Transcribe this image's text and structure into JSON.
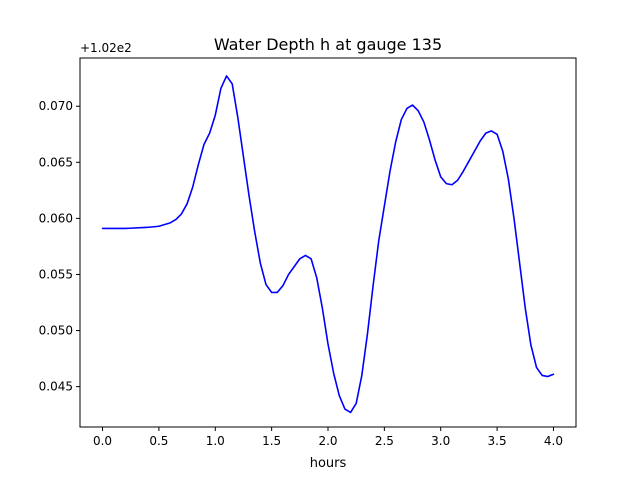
{
  "chart_data": {
    "type": "line",
    "title": "Water Depth h at gauge 135",
    "xlabel": "hours",
    "ylabel": "",
    "offset_text": "+1.02e2",
    "xlim": [
      -0.2,
      4.2
    ],
    "ylim": [
      0.0414,
      0.0743
    ],
    "x_ticks": [
      0.0,
      0.5,
      1.0,
      1.5,
      2.0,
      2.5,
      3.0,
      3.5,
      4.0
    ],
    "x_tick_labels": [
      "0.0",
      "0.5",
      "1.0",
      "1.5",
      "2.0",
      "2.5",
      "3.0",
      "3.5",
      "4.0"
    ],
    "y_ticks": [
      0.045,
      0.05,
      0.055,
      0.06,
      0.065,
      0.07
    ],
    "y_tick_labels": [
      "0.045",
      "0.050",
      "0.055",
      "0.060",
      "0.065",
      "0.070"
    ],
    "grid": false,
    "series": [
      {
        "color": "#0000ff",
        "x": [
          0.0,
          0.2,
          0.4,
          0.5,
          0.6,
          0.65,
          0.7,
          0.75,
          0.8,
          0.85,
          0.9,
          0.95,
          1.0,
          1.05,
          1.1,
          1.15,
          1.2,
          1.25,
          1.3,
          1.35,
          1.4,
          1.45,
          1.5,
          1.55,
          1.6,
          1.65,
          1.7,
          1.75,
          1.8,
          1.85,
          1.9,
          1.95,
          2.0,
          2.05,
          2.1,
          2.15,
          2.2,
          2.25,
          2.3,
          2.35,
          2.4,
          2.45,
          2.5,
          2.55,
          2.6,
          2.65,
          2.7,
          2.75,
          2.8,
          2.85,
          2.9,
          2.95,
          3.0,
          3.05,
          3.1,
          3.15,
          3.2,
          3.25,
          3.3,
          3.35,
          3.4,
          3.45,
          3.5,
          3.55,
          3.6,
          3.65,
          3.7,
          3.75,
          3.8,
          3.85,
          3.9,
          3.95,
          4.0
        ],
        "y": [
          0.0591,
          0.0591,
          0.0592,
          0.0593,
          0.0596,
          0.0599,
          0.0604,
          0.0613,
          0.0628,
          0.0648,
          0.0666,
          0.0676,
          0.0692,
          0.0716,
          0.0727,
          0.072,
          0.069,
          0.0655,
          0.062,
          0.0588,
          0.056,
          0.0541,
          0.0534,
          0.0534,
          0.054,
          0.055,
          0.0557,
          0.0564,
          0.0567,
          0.0564,
          0.0547,
          0.052,
          0.0488,
          0.0462,
          0.0442,
          0.043,
          0.0427,
          0.0435,
          0.046,
          0.0497,
          0.054,
          0.058,
          0.0611,
          0.0642,
          0.0668,
          0.0688,
          0.0698,
          0.0701,
          0.0696,
          0.0686,
          0.067,
          0.0652,
          0.0637,
          0.0631,
          0.063,
          0.0634,
          0.0642,
          0.0651,
          0.066,
          0.0669,
          0.0676,
          0.0678,
          0.0675,
          0.066,
          0.0635,
          0.06,
          0.056,
          0.052,
          0.0487,
          0.0467,
          0.046,
          0.0459,
          0.0461
        ]
      }
    ]
  }
}
